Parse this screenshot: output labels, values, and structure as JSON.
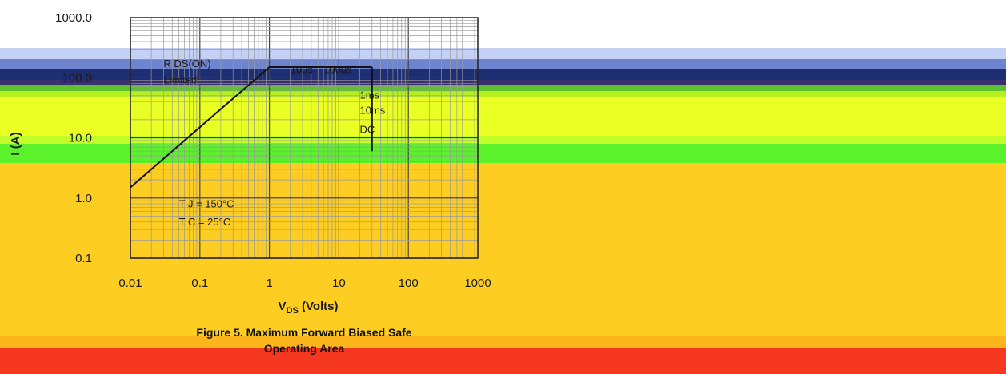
{
  "bands": [
    {
      "top": 0,
      "height": 60,
      "color": "#ffffff"
    },
    {
      "top": 60,
      "height": 14,
      "color": "#c4d0f4"
    },
    {
      "top": 74,
      "height": 12,
      "color": "#6f84cf"
    },
    {
      "top": 86,
      "height": 14,
      "color": "#1d2e72"
    },
    {
      "top": 100,
      "height": 6,
      "color": "#3a2f70"
    },
    {
      "top": 106,
      "height": 8,
      "color": "#5cc12c"
    },
    {
      "top": 114,
      "height": 8,
      "color": "#b6f020"
    },
    {
      "top": 122,
      "height": 48,
      "color": "#eaff23"
    },
    {
      "top": 170,
      "height": 10,
      "color": "#c2ff2a"
    },
    {
      "top": 180,
      "height": 24,
      "color": "#5bf22b"
    },
    {
      "top": 204,
      "height": 216,
      "color": "#fdcd21"
    },
    {
      "top": 420,
      "height": 16,
      "color": "#fcb61c"
    },
    {
      "top": 436,
      "height": 32,
      "color": "#f5381f"
    }
  ],
  "chart_data": {
    "type": "line",
    "title": "",
    "xlabel": "V",
    "xlabel_sub": "DS",
    "xlabel_unit": "(Volts)",
    "ylabel": "I (A)",
    "x_scale": "log",
    "y_scale": "log",
    "xlim": [
      0.01,
      1000
    ],
    "ylim": [
      0.1,
      1000
    ],
    "x_ticks": [
      "0.01",
      "0.1",
      "1",
      "10",
      "100",
      "1000"
    ],
    "y_ticks": [
      "1000.0",
      "100.0",
      "10.0",
      "1.0",
      "0.1"
    ],
    "grid": true,
    "annotations": [
      "R DS(ON)",
      "Limited",
      "10us",
      "100us",
      "1ms",
      "10ms",
      "DC",
      "T C = 25°C",
      "T J = 150°C"
    ],
    "series": [
      {
        "name": "",
        "x": [
          0.01,
          1.0,
          30
        ],
        "y": [
          1.5,
          150,
          150
        ]
      },
      {
        "name": "",
        "x": [
          30,
          30,
          30,
          30
        ],
        "y": [
          150,
          20,
          10,
          6
        ]
      }
    ]
  },
  "caption": {
    "line1": "Figure 5. Maximum Forward Biased Safe",
    "line2": "Operating Area"
  }
}
